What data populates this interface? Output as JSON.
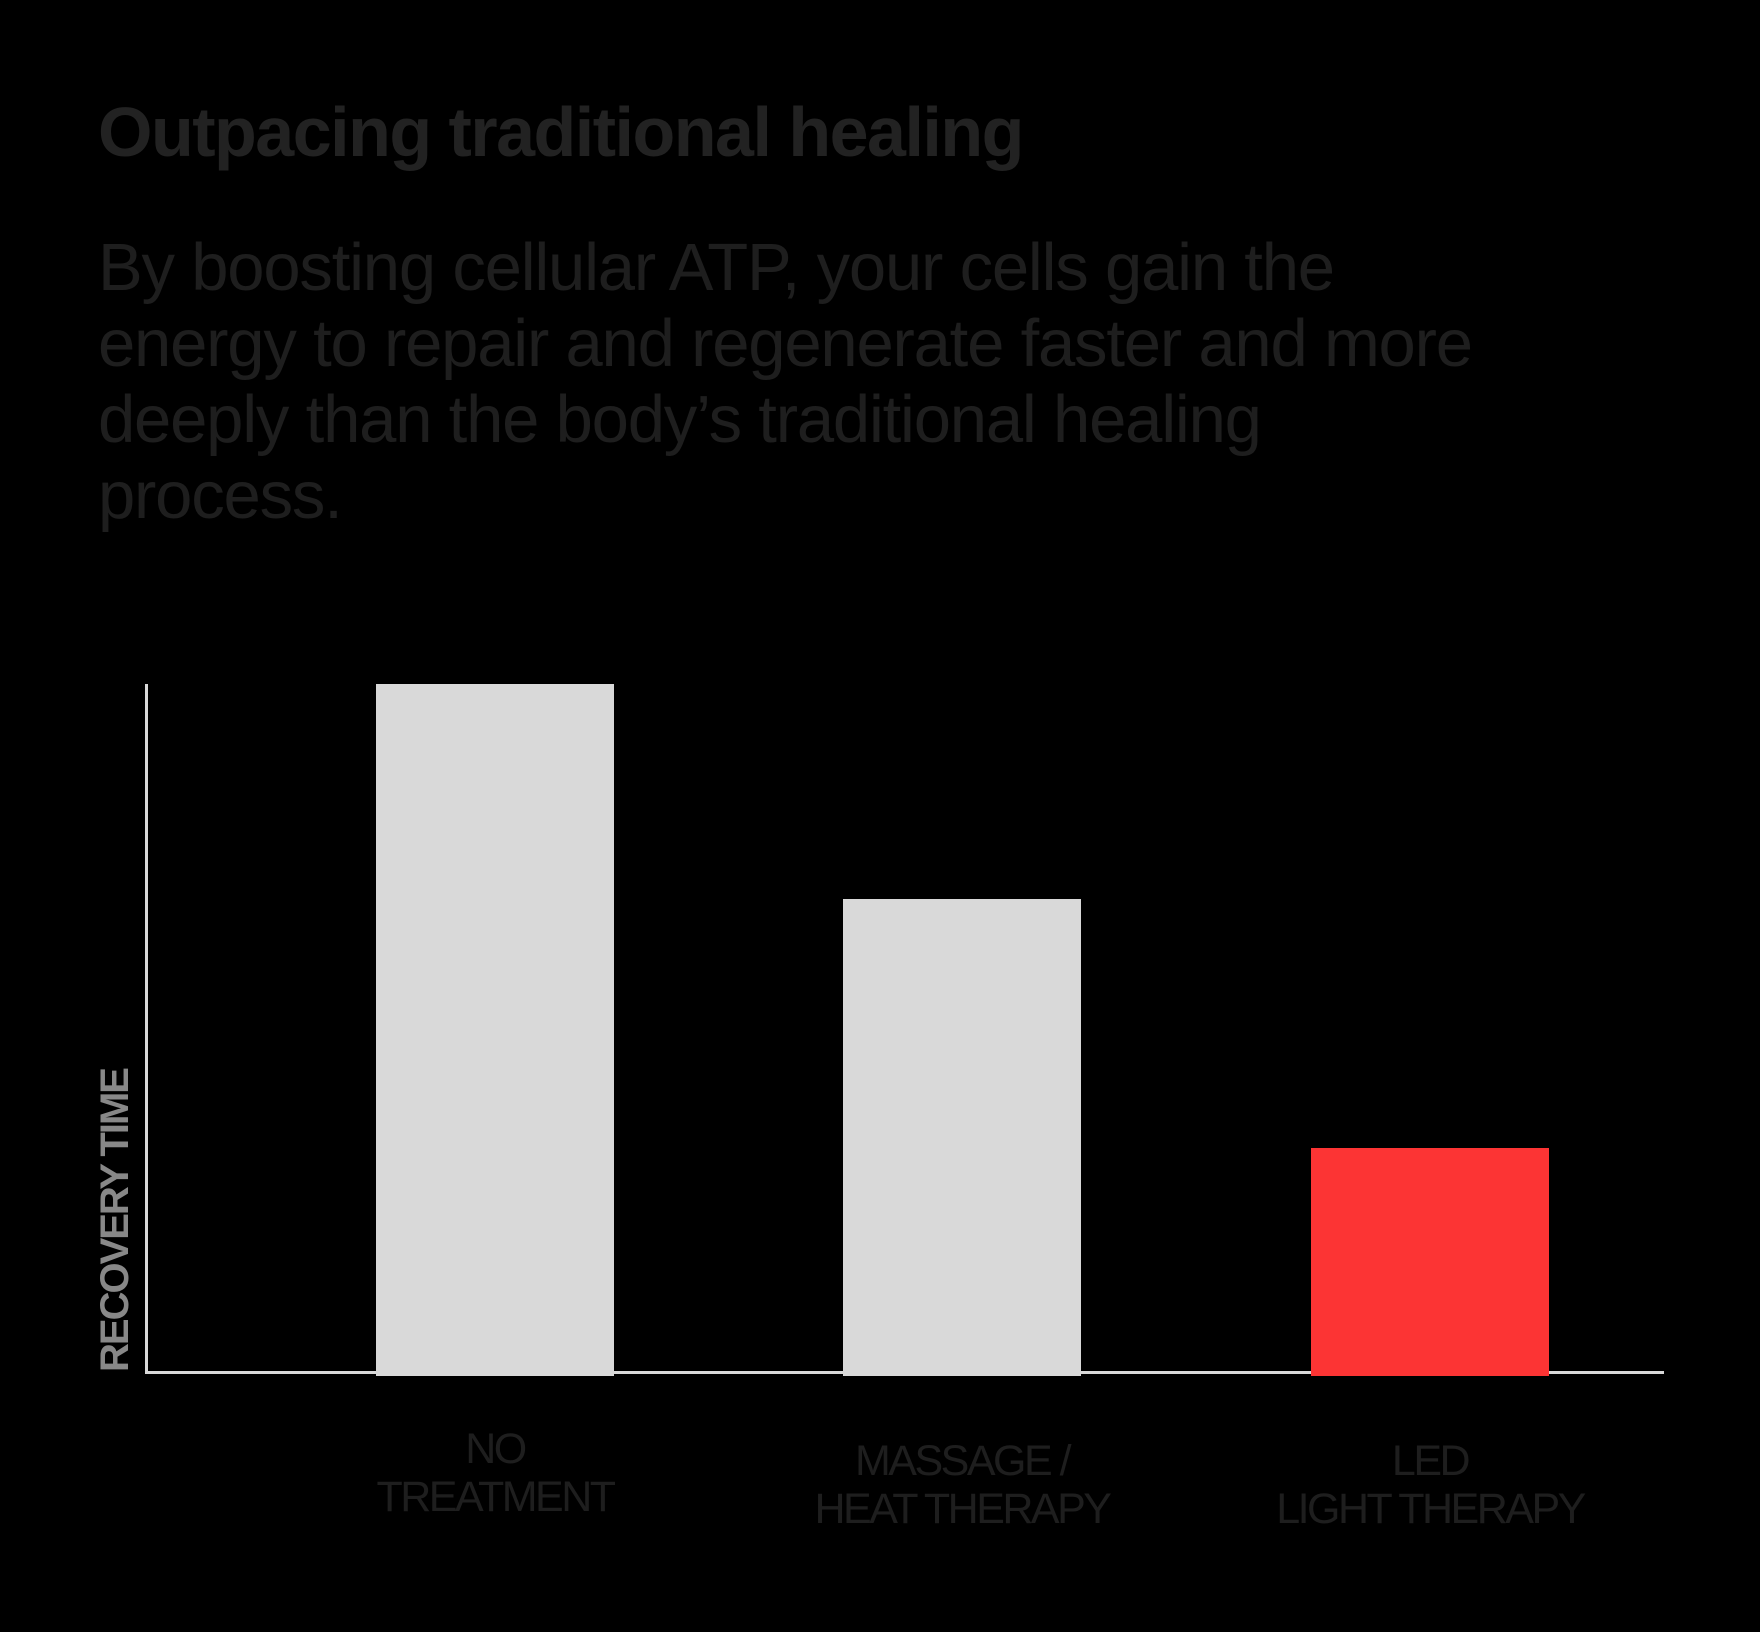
{
  "header": {
    "title": "Outpacing traditional healing",
    "subtitle_lines": [
      "By boosting cellular ATP, your cells gain the",
      "energy to repair and regenerate faster and more",
      "deeply than the body’s traditional healing",
      "process."
    ]
  },
  "colors": {
    "background": "#000000",
    "neutral_bar": "#d9d9d9",
    "highlight_bar": "#fc3434",
    "axis": "#d9d9d9",
    "axis_label": "#888888",
    "text": "#1e1e1e"
  },
  "chart_data": {
    "type": "bar",
    "title": "Outpacing traditional healing",
    "subtitle": "By boosting cellular ATP, your cells gain the energy to repair and regenerate faster and more deeply than the body’s traditional healing process.",
    "xlabel": "",
    "ylabel": "RECOVERY TIME",
    "categories": [
      "NO TREATMENT",
      "MASSAGE / HEAT THERAPY",
      "LED LIGHT THERAPY"
    ],
    "category_label_lines": [
      [
        "NO",
        "TREATMENT"
      ],
      [
        "MASSAGE /",
        "HEAT THERAPY"
      ],
      [
        "LED",
        "LIGHT THERAPY"
      ]
    ],
    "values": [
      100,
      69,
      33
    ],
    "value_units": "relative recovery time (% of no treatment, estimated from bar heights; no numeric axis shown)",
    "bar_colors": [
      "#d9d9d9",
      "#d9d9d9",
      "#fc3434"
    ],
    "highlighted_category": "LED LIGHT THERAPY",
    "ylim": [
      0,
      100
    ],
    "grid": false,
    "ticks": false,
    "legend": null
  }
}
